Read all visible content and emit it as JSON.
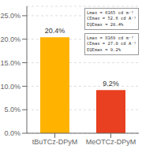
{
  "chart_data": {
    "type": "bar",
    "categories": [
      "tBuTCz-DPyM",
      "MeOTCz-DPyM"
    ],
    "values": [
      20.4,
      9.2
    ],
    "value_labels": [
      "20.4%",
      "9.2%"
    ],
    "data_labels": true,
    "colors": [
      "#FFB300",
      "#E84020"
    ],
    "ylim": [
      0,
      27
    ],
    "yticks": [
      {
        "value": 0.0,
        "label": "0.0%"
      },
      {
        "value": 5.0,
        "label": "5.0%"
      },
      {
        "value": 10.0,
        "label": "10.0%"
      },
      {
        "value": 15.0,
        "label": "15.0%"
      },
      {
        "value": 20.0,
        "label": "20.0%"
      },
      {
        "value": 25.0,
        "label": "25.0%"
      }
    ],
    "grid": true,
    "annotations": [
      [
        "Lmax = 6165 cd m⁻²",
        "CEmax = 52.6 cd A⁻¹",
        "EQEmax = 20.4%"
      ],
      [
        "Lmax = 8169 cd m⁻²",
        "CEmax = 27.0 cd A⁻¹",
        "EQEmax = 9.2%"
      ]
    ]
  }
}
